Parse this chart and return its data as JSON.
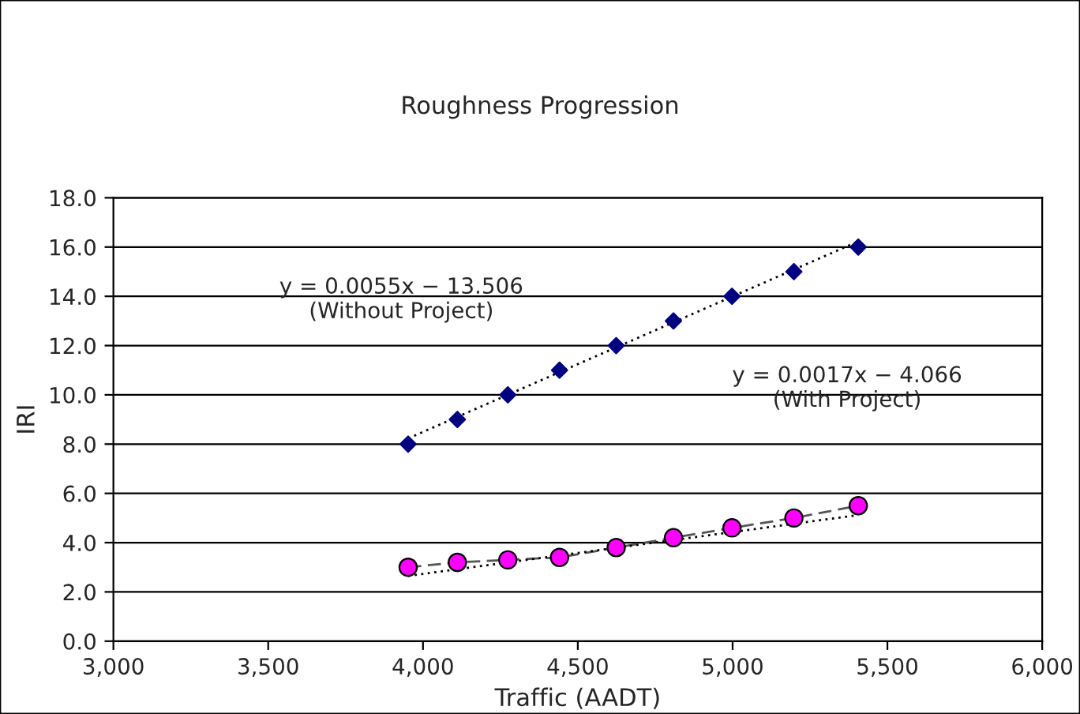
{
  "chart_data": {
    "type": "scatter",
    "title": "Roughness Progression",
    "xlabel": "Traffic (AADT)",
    "ylabel": "IRI",
    "series": [
      {
        "color": "#000080",
        "marker": "diamond",
        "x": [
          3952,
          4111,
          4274,
          4441,
          4624,
          4809,
          4998,
          5198,
          5406
        ],
        "values": [
          8,
          9,
          10,
          11,
          12,
          13,
          14,
          15,
          16
        ]
      },
      {
        "type": "line",
        "color": "#ff00ff",
        "marker": "circle",
        "line_style": "dashed",
        "x": [
          3952,
          4111,
          4274,
          4441,
          4624,
          4809,
          4998,
          5198,
          5406
        ],
        "values": [
          3.0,
          3.2,
          3.3,
          3.4,
          3.8,
          4.2,
          4.6,
          5.0,
          5.5
        ]
      },
      {
        "type": "line",
        "color": "#000000",
        "marker": "none",
        "line_style": "dotted",
        "x": [
          3952,
          5406
        ],
        "values": [
          8.23,
          16.23
        ]
      },
      {
        "type": "line",
        "color": "#000000",
        "marker": "none",
        "line_style": "dotted",
        "x": [
          3952,
          5406
        ],
        "values": [
          2.65,
          5.12
        ]
      }
    ],
    "annotations": [
      "y = 0.0055x − 13.506\n(Without Project)",
      "y = 0.0017x − 4.066\n(With Project)"
    ],
    "xlim": [
      3000,
      6000
    ],
    "xticks": [
      {
        "value": 3000,
        "label": "3,000"
      },
      {
        "value": 3500,
        "label": "3,500"
      },
      {
        "value": 4000,
        "label": "4,000"
      },
      {
        "value": 4500,
        "label": "4,500"
      },
      {
        "value": 5000,
        "label": "5,000"
      },
      {
        "value": 5500,
        "label": "5,500"
      },
      {
        "value": 6000,
        "label": "6,000"
      }
    ],
    "ylim": [
      0,
      18
    ],
    "yticks": [
      {
        "value": 0,
        "label": "0.0"
      },
      {
        "value": 2,
        "label": "2.0"
      },
      {
        "value": 4,
        "label": "4.0"
      },
      {
        "value": 6,
        "label": "6.0"
      },
      {
        "value": 8,
        "label": "8.0"
      },
      {
        "value": 10,
        "label": "10.0"
      },
      {
        "value": 12,
        "label": "12.0"
      },
      {
        "value": 14,
        "label": "14.0"
      },
      {
        "value": 16,
        "label": "16.0"
      },
      {
        "value": 18,
        "label": "18.0"
      }
    ],
    "grid": "y",
    "legend": false
  }
}
